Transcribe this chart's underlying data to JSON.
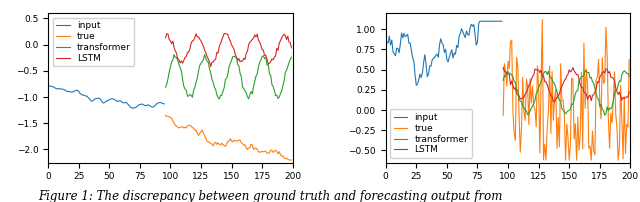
{
  "split": 96,
  "n_total": 200,
  "colors": {
    "input": "#1f77b4",
    "true": "#ff7f0e",
    "transformer": "#2ca02c",
    "lstm": "#d62728"
  },
  "left": {
    "ylim": [
      -2.25,
      0.6
    ],
    "yticks": [
      0.5,
      0.0,
      -0.5,
      -1.0,
      -1.5,
      -2.0
    ],
    "legend_loc": "upper left"
  },
  "right": {
    "ylim": [
      -0.65,
      1.2
    ],
    "yticks": [
      -0.5,
      -0.25,
      0.0,
      0.25,
      0.5,
      0.75,
      1.0
    ],
    "legend_loc": "lower left"
  },
  "xticks": [
    0,
    25,
    50,
    75,
    100,
    125,
    150,
    175,
    200
  ],
  "caption": "Figure 1: The discrepancy between ground truth and forecasting output from"
}
